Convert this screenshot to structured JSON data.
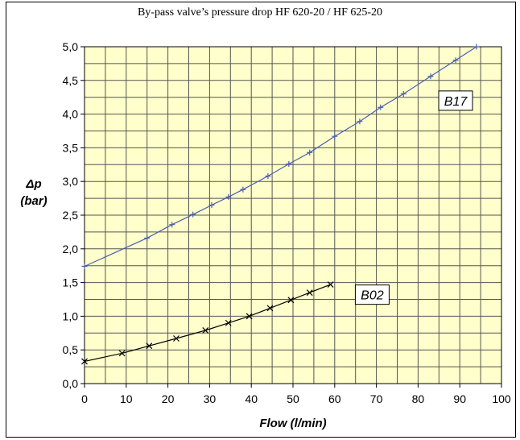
{
  "chart_data": {
    "type": "line",
    "title": "By-pass valve’s pressure drop HF 620-20 / HF 625-20",
    "xlabel": "Flow (l/min)",
    "ylabel_symbol": "Δp",
    "ylabel_unit": "(bar)",
    "xlim": [
      0,
      100
    ],
    "ylim": [
      0,
      5
    ],
    "x_ticks": [
      "0",
      "10",
      "20",
      "30",
      "40",
      "50",
      "60",
      "70",
      "80",
      "90",
      "100"
    ],
    "y_ticks": [
      "0,0",
      "0,5",
      "1,0",
      "1,5",
      "2,0",
      "2,5",
      "3,0",
      "3,5",
      "4,0",
      "4,5",
      "5,0"
    ],
    "grid": true,
    "plot_background": "#ffffcc",
    "series": [
      {
        "name": "B17",
        "color": "#4a5fb0",
        "marker": "+",
        "x": [
          0,
          15,
          21,
          26,
          30.5,
          34.5,
          38,
          44,
          49,
          54,
          60,
          66,
          71,
          76.5,
          83,
          89,
          94
        ],
        "y": [
          1.74,
          2.16,
          2.36,
          2.51,
          2.65,
          2.77,
          2.88,
          3.08,
          3.26,
          3.43,
          3.67,
          3.89,
          4.1,
          4.3,
          4.56,
          4.8,
          5.0
        ]
      },
      {
        "name": "B02",
        "color": "#000000",
        "marker": "x",
        "x": [
          0,
          9,
          15.5,
          22,
          29,
          34.5,
          39.5,
          44.5,
          49.5,
          54,
          59
        ],
        "y": [
          0.33,
          0.45,
          0.56,
          0.67,
          0.79,
          0.9,
          1.0,
          1.12,
          1.24,
          1.35,
          1.47
        ]
      }
    ],
    "series_labels": [
      {
        "name": "B17",
        "x": 89,
        "y": 4.2
      },
      {
        "name": "B02",
        "x": 69,
        "y": 1.32
      }
    ]
  }
}
